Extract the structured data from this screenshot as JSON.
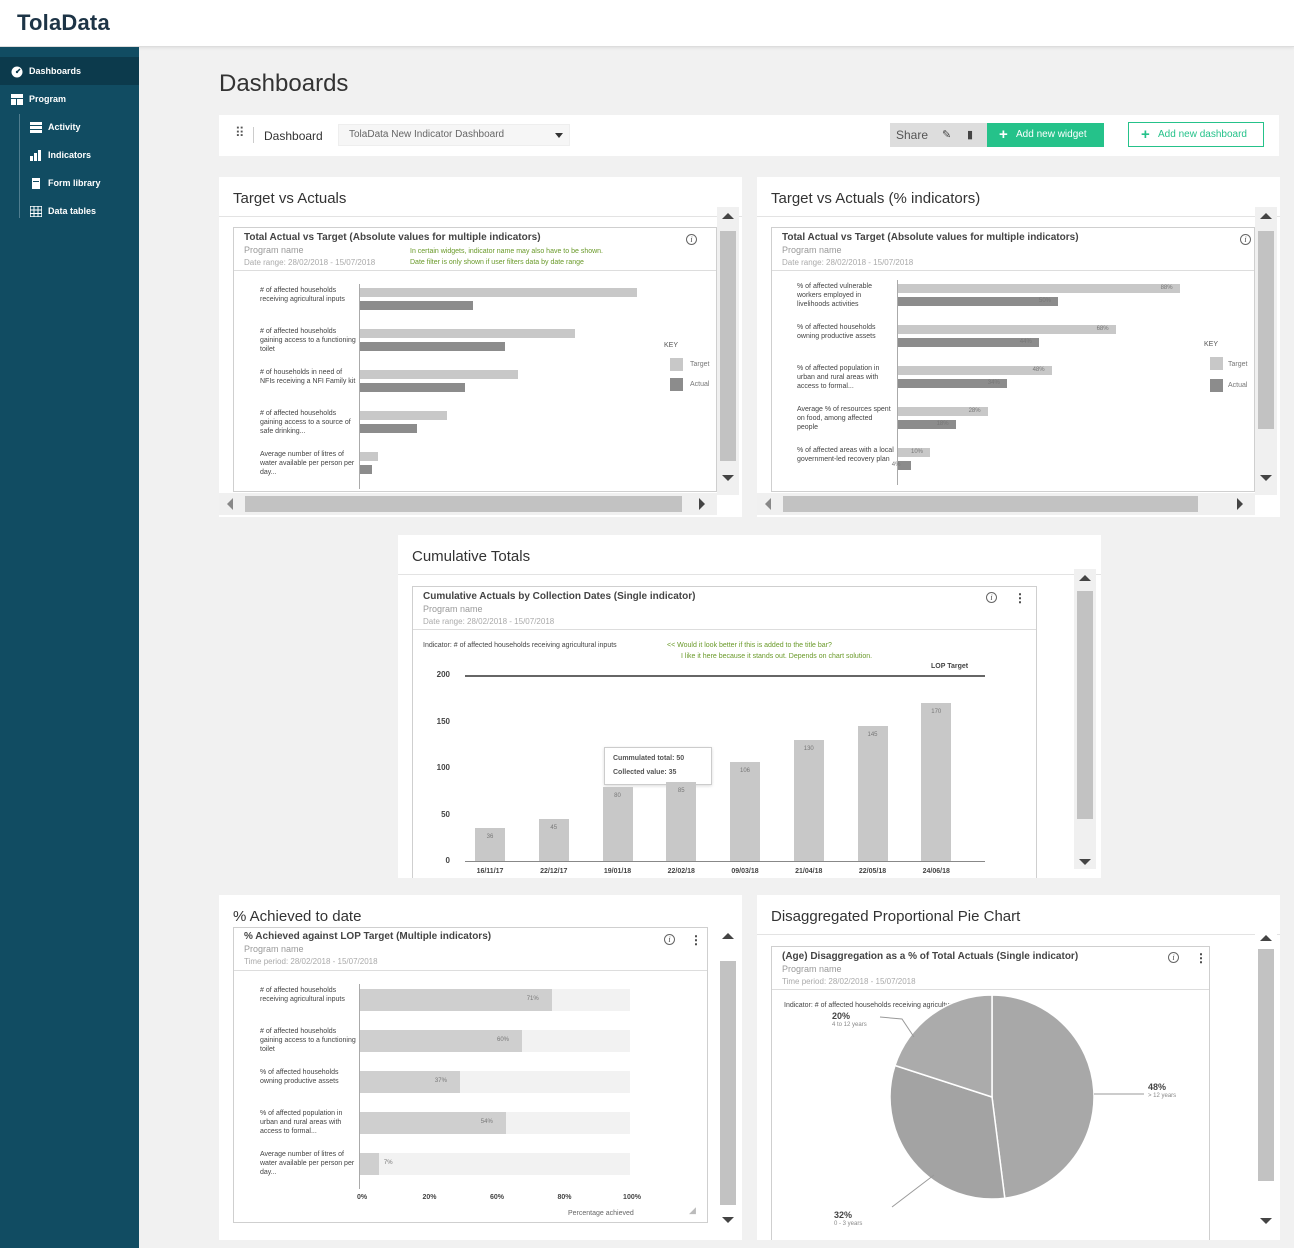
{
  "app": {
    "logo": "TolaData"
  },
  "sidebar": {
    "items": [
      {
        "label": "Dashboards",
        "icon": "dashboard-icon"
      },
      {
        "label": "Program",
        "icon": "program-icon"
      },
      {
        "label": "Activity",
        "icon": "activity-icon"
      },
      {
        "label": "Indicators",
        "icon": "indicators-icon"
      },
      {
        "label": "Form library",
        "icon": "form-library-icon"
      },
      {
        "label": "Data tables",
        "icon": "data-tables-icon"
      }
    ]
  },
  "page": {
    "title": "Dashboards"
  },
  "toolbar": {
    "label": "Dashboard",
    "selected_dashboard": "TolaData New Indicator Dashboard",
    "share_label": "Share",
    "add_widget_label": "Add new widget",
    "add_dashboard_label": "Add new dashboard"
  },
  "colors": {
    "sidebar": "#114c62",
    "accent": "#25c28a",
    "target": "#c8c8c8",
    "actual": "#8c8c8c"
  },
  "widgets": {
    "target_vs_actuals": {
      "panel_title": "Target vs Actuals",
      "card_title": "Total Actual vs Target (Absolute values for multiple indicators)",
      "program": "Program name",
      "date_range": "Date range: 28/02/2018 - 15/07/2018",
      "note1": "In certain widgets, indicator name may also have to be shown.",
      "note2": "Date filter is only shown if user filters data by date range",
      "key_title": "KEY",
      "key_target": "Target",
      "key_actual": "Actual"
    },
    "target_vs_actuals_pct": {
      "panel_title": "Target vs Actuals (% indicators)",
      "card_title": "Total Actual vs Target (Absolute values for multiple indicators)",
      "program": "Program name",
      "date_range": "Date range: 28/02/2018 - 15/07/2018",
      "key_title": "KEY",
      "key_target": "Target",
      "key_actual": "Actual"
    },
    "cumulative": {
      "panel_title": "Cumulative Totals",
      "card_title": "Cumulative Actuals by Collection Dates (Single indicator)",
      "program": "Program name",
      "date_range": "Date range: 28/02/2018 - 15/07/2018",
      "indicator": "Indicator: # of affected households receiving agricultural inputs",
      "note1": "<< Would it look better if this is added to the title bar?",
      "note2": "I like it here because it stands out. Depends on chart solution.",
      "lop_label": "LOP Target",
      "tooltip_total": "Cummulated total: 50",
      "tooltip_collected": "Collected value: 35"
    },
    "achieved": {
      "panel_title": "% Achieved to date",
      "card_title": "% Achieved against LOP Target (Multiple indicators)",
      "program": "Program name",
      "date_range": "Time period: 28/02/2018 - 15/07/2018",
      "xlabel": "Percentage achieved"
    },
    "pie": {
      "panel_title": "Disaggregated Proportional Pie Chart",
      "card_title": "(Age) Disaggregation as a % of Total Actuals (Single indicator)",
      "program": "Program name",
      "date_range": "Time period: 28/02/2018 - 15/07/2018",
      "indicator": "Indicator: # of affected households receiving agricultural inputs"
    }
  },
  "chart_data": [
    {
      "type": "bar",
      "orientation": "horizontal",
      "title": "Total Actual vs Target (Absolute values for multiple indicators)",
      "categories": [
        "# of affected households receiving agricultural inputs",
        "# of affected households gaining access to a functioning toilet",
        "# of households in need of NFIs receiving a NFI Family kit",
        "# of affected households gaining access to a source of safe drinking...",
        "Average number of litres of water available per person per day..."
      ],
      "series": [
        {
          "name": "Target",
          "values": [
            280,
            217,
            160,
            88,
            18
          ]
        },
        {
          "name": "Actual",
          "values": [
            114,
            146,
            106,
            58,
            12
          ]
        }
      ],
      "xlim": [
        0,
        300
      ]
    },
    {
      "type": "bar",
      "orientation": "horizontal",
      "title": "Total Actual vs Target (Absolute values for multiple indicators)",
      "categories": [
        "% of affected vulnerable workers employed in livelihoods activities",
        "% of affected households owning productive assets",
        "% of affected population in urban and rural areas with access to formal...",
        "Average % of resources spent on food, among affected people",
        "% of affected areas with a local government-led recovery plan"
      ],
      "series": [
        {
          "name": "Target",
          "values": [
            88,
            68,
            48,
            28,
            10
          ]
        },
        {
          "name": "Actual",
          "values": [
            50,
            44,
            34,
            18,
            4
          ]
        }
      ],
      "xlim": [
        0,
        100
      ]
    },
    {
      "type": "bar",
      "title": "Cumulative Actuals by Collection Dates (Single indicator)",
      "categories": [
        "16/11/17",
        "22/12/17",
        "19/01/18",
        "22/02/18",
        "09/03/18",
        "21/04/18",
        "22/05/18",
        "24/06/18"
      ],
      "series": [
        {
          "name": "Actual",
          "values": [
            36,
            45,
            80,
            85,
            106,
            130,
            145,
            170
          ]
        }
      ],
      "ylim": [
        0,
        200
      ],
      "yticks": [
        0,
        50,
        100,
        150,
        200
      ],
      "lop_target": 200
    },
    {
      "type": "bar",
      "orientation": "horizontal",
      "title": "% Achieved against LOP Target (Multiple indicators)",
      "categories": [
        "# of affected households receiving agricultural inputs",
        "# of affected households gaining access to a functioning toilet",
        "% of affected households owning productive assets",
        "% of affected population in urban and rural areas with access to formal...",
        "Average number of litres of water available per person per day..."
      ],
      "series": [
        {
          "name": "Achieved",
          "values": [
            71,
            60,
            37,
            54,
            7
          ]
        }
      ],
      "xlabel": "Percentage achieved",
      "xticks": [
        "0%",
        "20%",
        "60%",
        "80%",
        "100%"
      ],
      "xlim": [
        0,
        100
      ]
    },
    {
      "type": "pie",
      "title": "(Age) Disaggregation as a % of Total Actuals (Single indicator)",
      "slices": [
        {
          "label": "48%",
          "sub": "> 12 years",
          "value": 48
        },
        {
          "label": "32%",
          "sub": "0 - 3 years",
          "value": 32
        },
        {
          "label": "20%",
          "sub": "4 to 12 years",
          "value": 20
        }
      ]
    }
  ]
}
